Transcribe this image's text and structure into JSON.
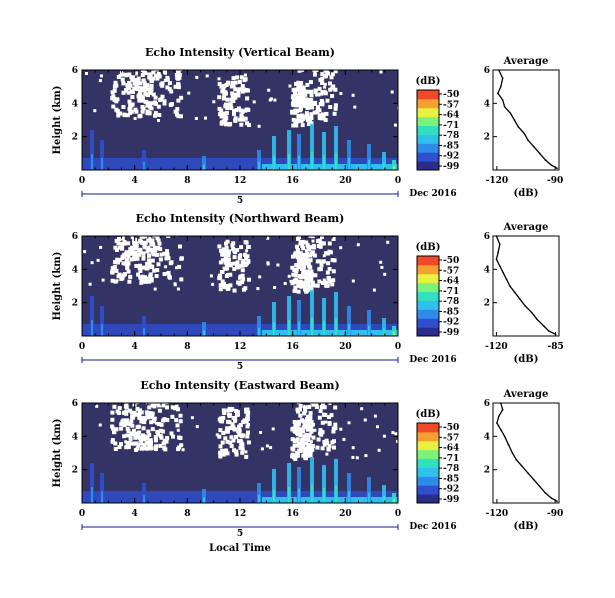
{
  "chart_data": [
    {
      "type": "heatmap",
      "title": "Echo Intensity (Vertical Beam)",
      "ylabel": "Height (km)",
      "x_ticks": [
        "0",
        "4",
        "8",
        "12",
        "16",
        "20",
        "0"
      ],
      "y_ticks": [
        "6",
        "4",
        "2"
      ],
      "xlim": [
        0,
        24
      ],
      "ylim": [
        0,
        6
      ],
      "day_label": "5",
      "date_label": "Dec 2016",
      "colorbar": {
        "unit": "(dB)",
        "ticks": [
          "-50",
          "-57",
          "-64",
          "-71",
          "-78",
          "-85",
          "-92",
          "-99"
        ]
      },
      "average_profile": {
        "title": "Average",
        "xlabel": "(dB)",
        "x_ticks": [
          "-120",
          "-90"
        ],
        "y_ticks": [
          "6",
          "4",
          "2"
        ],
        "xlim": [
          -122,
          -88
        ],
        "points": [
          [
            -119,
            6.0
          ],
          [
            -117,
            5.5
          ],
          [
            -118,
            5.0
          ],
          [
            -119.5,
            4.6
          ],
          [
            -117,
            4.2
          ],
          [
            -116,
            3.8
          ],
          [
            -113,
            3.4
          ],
          [
            -111,
            3.0
          ],
          [
            -109,
            2.6
          ],
          [
            -106,
            2.2
          ],
          [
            -104,
            1.8
          ],
          [
            -101,
            1.4
          ],
          [
            -98,
            1.0
          ],
          [
            -95,
            0.6
          ],
          [
            -92,
            0.3
          ],
          [
            -89,
            0.1
          ]
        ]
      }
    },
    {
      "type": "heatmap",
      "title": "Echo Intensity (Northward Beam)",
      "ylabel": "Height (km)",
      "x_ticks": [
        "0",
        "4",
        "8",
        "12",
        "16",
        "20",
        "0"
      ],
      "y_ticks": [
        "6",
        "4",
        "2"
      ],
      "xlim": [
        0,
        24
      ],
      "ylim": [
        0,
        6
      ],
      "day_label": "5",
      "date_label": "Dec 2016",
      "colorbar": {
        "unit": "(dB)",
        "ticks": [
          "-50",
          "-57",
          "-64",
          "-71",
          "-78",
          "-85",
          "-92",
          "-99"
        ]
      },
      "average_profile": {
        "title": "Average",
        "xlabel": "(dB)",
        "x_ticks": [
          "-120",
          "-85"
        ],
        "y_ticks": [
          "6",
          "4",
          "2"
        ],
        "xlim": [
          -122,
          -83
        ],
        "points": [
          [
            -120,
            6.0
          ],
          [
            -118,
            5.5
          ],
          [
            -119,
            5.0
          ],
          [
            -120,
            4.6
          ],
          [
            -118,
            4.2
          ],
          [
            -116,
            3.8
          ],
          [
            -114,
            3.4
          ],
          [
            -112,
            3.0
          ],
          [
            -109,
            2.6
          ],
          [
            -106,
            2.2
          ],
          [
            -103,
            1.8
          ],
          [
            -99,
            1.4
          ],
          [
            -96,
            1.0
          ],
          [
            -92,
            0.6
          ],
          [
            -89,
            0.3
          ],
          [
            -85,
            0.1
          ]
        ]
      }
    },
    {
      "type": "heatmap",
      "title": "Echo Intensity (Eastward Beam)",
      "ylabel": "Height (km)",
      "xlabel": "Local Time",
      "x_ticks": [
        "0",
        "4",
        "8",
        "12",
        "16",
        "20",
        "0"
      ],
      "y_ticks": [
        "6",
        "4",
        "2"
      ],
      "xlim": [
        0,
        24
      ],
      "ylim": [
        0,
        6
      ],
      "day_label": "5",
      "date_label": "Dec 2016",
      "colorbar": {
        "unit": "(dB)",
        "ticks": [
          "-50",
          "-57",
          "-64",
          "-71",
          "-78",
          "-85",
          "-92",
          "-99"
        ]
      },
      "average_profile": {
        "title": "Average",
        "xlabel": "(dB)",
        "x_ticks": [
          "-120",
          "-90"
        ],
        "y_ticks": [
          "6",
          "4",
          "2"
        ],
        "xlim": [
          -122,
          -88
        ],
        "points": [
          [
            -118,
            6.0
          ],
          [
            -117,
            5.6
          ],
          [
            -119,
            5.2
          ],
          [
            -120,
            4.8
          ],
          [
            -118,
            4.4
          ],
          [
            -116,
            4.0
          ],
          [
            -114,
            3.5
          ],
          [
            -112,
            3.0
          ],
          [
            -110,
            2.6
          ],
          [
            -107,
            2.2
          ],
          [
            -104,
            1.8
          ],
          [
            -101,
            1.4
          ],
          [
            -98,
            1.0
          ],
          [
            -95,
            0.6
          ],
          [
            -92,
            0.3
          ],
          [
            -89,
            0.1
          ]
        ]
      }
    }
  ],
  "colors": {
    "background_echo": "#333366",
    "colormap": [
      "#2b2d8a",
      "#2f4fd0",
      "#2f8be8",
      "#2fc0ee",
      "#30e0c0",
      "#7cf27a",
      "#e8f040",
      "#f5a030",
      "#f04a2a"
    ],
    "axis": "#000000",
    "day_bar": "#1a1a8a"
  }
}
